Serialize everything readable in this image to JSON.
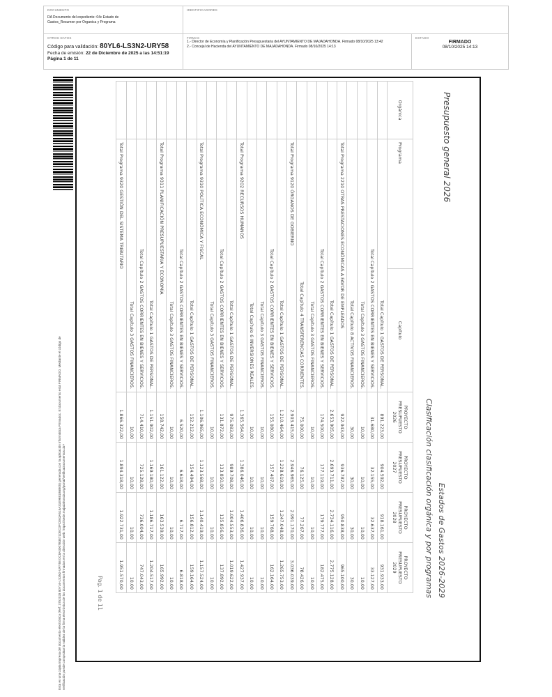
{
  "header": {
    "documento_label": "DOCUMENTO",
    "documento_text": "DA Documento del expediente: 04c Estado de Gastos_Resumen por Organica y Programa",
    "identificadores_label": "IDENTIFICADORES",
    "otros_label": "OTROS DATOS",
    "codigo_prefix": "Código para validación:",
    "codigo": "80YL6-LS3N2-URY58",
    "fecha_prefix": "Fecha de emisión:",
    "fecha": "22 de Diciembre de 2025 a las 14:51:19",
    "pagina": "Página 1 de 11",
    "firmas_label": "FIRMAS",
    "firmas": [
      "1.- Director de Economía y Planificación Presupuestaria del AYUNTAMIENTO DE MAJADAHONDA. Firmado 08/10/2025 13:42",
      "2.- Concejal de Hacienda del AYUNTAMIENTO DE MAJADAHONDA. Firmado 08/10/2025 14:13"
    ],
    "estado_label": "ESTADO",
    "estado": "FIRMADO",
    "estado_fecha": "08/10/2025 14:13"
  },
  "side_text": [
    "Esta es una copia impresa del documento electrónico (Ref: 3752028 80YL6-LS3N2-URY58 DC8A3007B3871DEC0FCE63A515A31E9681B6B05) generada con la aplicación informática Firmadoc. El documento está FIRMADO. Mediante el código de",
    "verificación puede comprobar la validez de la firma electrónica de los documentos firmados en la dirección web: https://sede.majadahonda.org/portal/verificaDocumentos.do?"
  ],
  "report": {
    "title_left": "Presupuesto general 2026",
    "title_right": "Estados de Gastos 2026-2029",
    "subtitle_right": "Clasificación clasificación orgánica y por programas",
    "columns": [
      "Orgánica",
      "Programa",
      "Capítulo",
      "PROYECTO PRESUPUESTO 2026",
      "PROYECTO PRESUPUESTO 2027",
      "PROYECTO PRESUPUESTO 2028",
      "PROYECTO PRESUPUESTO 2029"
    ],
    "rows": [
      {
        "type": "cap",
        "label": "Total Capítulo 1 GASTOS DE PERSONAL.",
        "values": [
          "891.223,00",
          "904.592,00",
          "918.161,00",
          "931.933,00"
        ]
      },
      {
        "type": "cap",
        "label": "Total Capítulo 2 GASTOS CORRIENTES EN BIENES Y SERVICIOS.",
        "values": [
          "31.680,00",
          "32.155,00",
          "32.637,00",
          "33.127,00"
        ]
      },
      {
        "type": "cap",
        "label": "Total Capítulo 3 GASTOS FINANCIEROS.",
        "values": [
          "10,00",
          "10,00",
          "10,00",
          "10,00"
        ]
      },
      {
        "type": "cap",
        "label": "Total Capítulo 8 ACTIVOS FINANCIEROS.",
        "values": [
          "30,00",
          "30,00",
          "30,00",
          "30,00"
        ]
      },
      {
        "type": "prog",
        "label": "Total Programa 2210 OTRAS PRESTACIONES ECONÓMICAS A FAVOR DE EMPLEADOS",
        "values": [
          "922.943,00",
          "936.787,00",
          "950.838,00",
          "965.100,00"
        ]
      },
      {
        "type": "cap",
        "label": "Total Capítulo 1 GASTOS DE PERSONAL.",
        "values": [
          "2.653.905,00",
          "2.693.711,00",
          "2.734.116,00",
          "2.775.128,00"
        ]
      },
      {
        "type": "cap",
        "label": "Total Capítulo 2 GASTOS CORRIENTES EN BIENES Y SERVICIOS.",
        "values": [
          "174.500,00",
          "177.119,00",
          "179.777,00",
          "182.475,00"
        ]
      },
      {
        "type": "cap",
        "label": "Total Capítulo 3 GASTOS FINANCIEROS.",
        "values": [
          "10,00",
          "10,00",
          "10,00",
          "10,00"
        ]
      },
      {
        "type": "cap",
        "label": "Total Capítulo 4 TRANSFERENCIAS CORRIENTES.",
        "values": [
          "75.000,00",
          "76.125,00",
          "77.267,00",
          "78.426,00"
        ]
      },
      {
        "type": "prog",
        "label": "Total Programa 9120 ÓRGANOS DE GOBIERNO",
        "values": [
          "2.903.415,00",
          "2.946.965,00",
          "2.991.170,00",
          "3.036.039,00"
        ]
      },
      {
        "type": "cap",
        "label": "Total Capítulo 1 GASTOS DE PERSONAL.",
        "values": [
          "1.210.464,00",
          "1.228.619,00",
          "1.247.048,00",
          "1.265.753,00"
        ]
      },
      {
        "type": "cap",
        "label": "Total Capítulo 2 GASTOS CORRIENTES EN BIENES Y SERVICIOS.",
        "values": [
          "155.080,00",
          "157.407,00",
          "159.768,00",
          "162.164,00"
        ]
      },
      {
        "type": "cap",
        "label": "Total Capítulo 3 GASTOS FINANCIEROS.",
        "values": [
          "10,00",
          "10,00",
          "10,00",
          "10,00"
        ]
      },
      {
        "type": "cap",
        "label": "Total Capítulo 6 INVERSIONES REALES.",
        "values": [
          "10,00",
          "10,00",
          "10,00",
          "10,00"
        ]
      },
      {
        "type": "prog",
        "label": "Total Programa 9202 RECURSOS HUMANOS",
        "values": [
          "1.365.564,00",
          "1.386.046,00",
          "1.406.836,00",
          "1.427.937,00"
        ]
      },
      {
        "type": "cap",
        "label": "Total Capítulo 1 GASTOS DE PERSONAL.",
        "values": [
          "975.083,00",
          "989.708,00",
          "1.004.553,00",
          "1.019.622,00"
        ]
      },
      {
        "type": "cap",
        "label": "Total Capítulo 2 GASTOS CORRIENTES EN BIENES Y SERVICIOS.",
        "values": [
          "131.872,00",
          "133.850,00",
          "135.856,00",
          "137.892,00"
        ]
      },
      {
        "type": "cap",
        "label": "Total Capítulo 3 GASTOS FINANCIEROS.",
        "values": [
          "10,00",
          "10,00",
          "10,00",
          "10,00"
        ]
      },
      {
        "type": "prog",
        "label": "Total Programa 9310 POLÍTICA ECONÓMICA Y FISCAL",
        "values": [
          "1.106.965,00",
          "1.123.568,00",
          "1.140.419,00",
          "1.157.524,00"
        ]
      },
      {
        "type": "cap",
        "label": "Total Capítulo 1 GASTOS DE PERSONAL.",
        "values": [
          "152.212,00",
          "154.494,00",
          "156.812,00",
          "159.164,00"
        ]
      },
      {
        "type": "cap",
        "label": "Total Capítulo 2 GASTOS CORRIENTES EN BIENES Y SERVICIOS.",
        "values": [
          "6.520,00",
          "6.618,00",
          "6.717,00",
          "6.818,00"
        ]
      },
      {
        "type": "cap",
        "label": "Total Capítulo 3 GASTOS FINANCIEROS.",
        "values": [
          "10,00",
          "10,00",
          "10,00",
          "10,00"
        ]
      },
      {
        "type": "prog",
        "label": "Total Programa 9311 PLANIFICACIÓN PRESUPUESTARIA Y ECONOMÍA",
        "values": [
          "158.742,00",
          "161.122,00",
          "163.539,00",
          "165.992,00"
        ]
      },
      {
        "type": "cap",
        "label": "Total Capítulo 1 GASTOS DE PERSONAL.",
        "values": [
          "1.151.902,00",
          "1.169.180,00",
          "1.186.717,00",
          "1.204.517,00"
        ]
      },
      {
        "type": "cap",
        "label": "Total Capítulo 2 GASTOS CORRIENTES EN BIENES Y SERVICIOS.",
        "values": [
          "714.410,00",
          "725.128,00",
          "736.004,00",
          "747.043,00"
        ]
      },
      {
        "type": "cap",
        "label": "Total Capítulo 3 GASTOS FINANCIEROS.",
        "values": [
          "10,00",
          "10,00",
          "10,00",
          "10,00"
        ]
      },
      {
        "type": "prog",
        "label": "Total Programa 9320 GESTIÓN DEL SISTEMA TRIBUTARIO",
        "values": [
          "1.866.322,00",
          "1.894.318,00",
          "1.922.731,00",
          "1.951.570,00"
        ]
      }
    ],
    "page_footer": "Pag. 1 de 11"
  }
}
